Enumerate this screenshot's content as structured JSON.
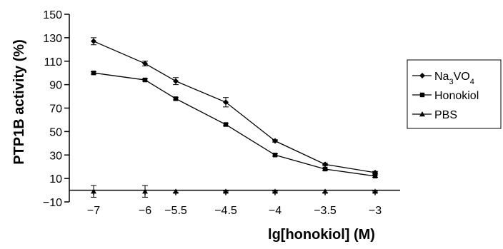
{
  "chart_data": {
    "type": "line",
    "title": "",
    "xlabel": "lg[honokiol] (M)",
    "ylabel": "PTP1B activity (%)",
    "categories": [
      "−7",
      "−6",
      "−5.5",
      "−4.5",
      "−4",
      "−3.5",
      "−3"
    ],
    "y_ticks": [
      "−10",
      "10",
      "30",
      "50",
      "70",
      "90",
      "110",
      "130",
      "150"
    ],
    "ylim": [
      -10,
      150
    ],
    "grid": false,
    "legend_position": "right",
    "series": [
      {
        "name": "Na3VO4",
        "name_parts": [
          "Na",
          "3",
          "VO",
          "4"
        ],
        "marker": "diamond",
        "color": "#000000",
        "values": [
          127,
          108,
          93,
          75,
          42,
          22,
          15
        ],
        "errors": [
          3,
          2,
          3,
          4,
          1,
          1,
          1
        ]
      },
      {
        "name": "Honokiol",
        "marker": "square",
        "color": "#000000",
        "values": [
          100,
          94,
          78,
          56,
          30,
          18,
          12
        ],
        "errors": [
          1,
          1,
          1,
          1,
          1,
          1,
          1
        ]
      },
      {
        "name": "PBS",
        "marker": "triangle",
        "color": "#000000",
        "values": [
          -1,
          -1,
          -1,
          -1,
          -1,
          -1,
          -1
        ],
        "errors": [
          5,
          5,
          1,
          0.5,
          0.5,
          1,
          0.5
        ]
      }
    ]
  }
}
